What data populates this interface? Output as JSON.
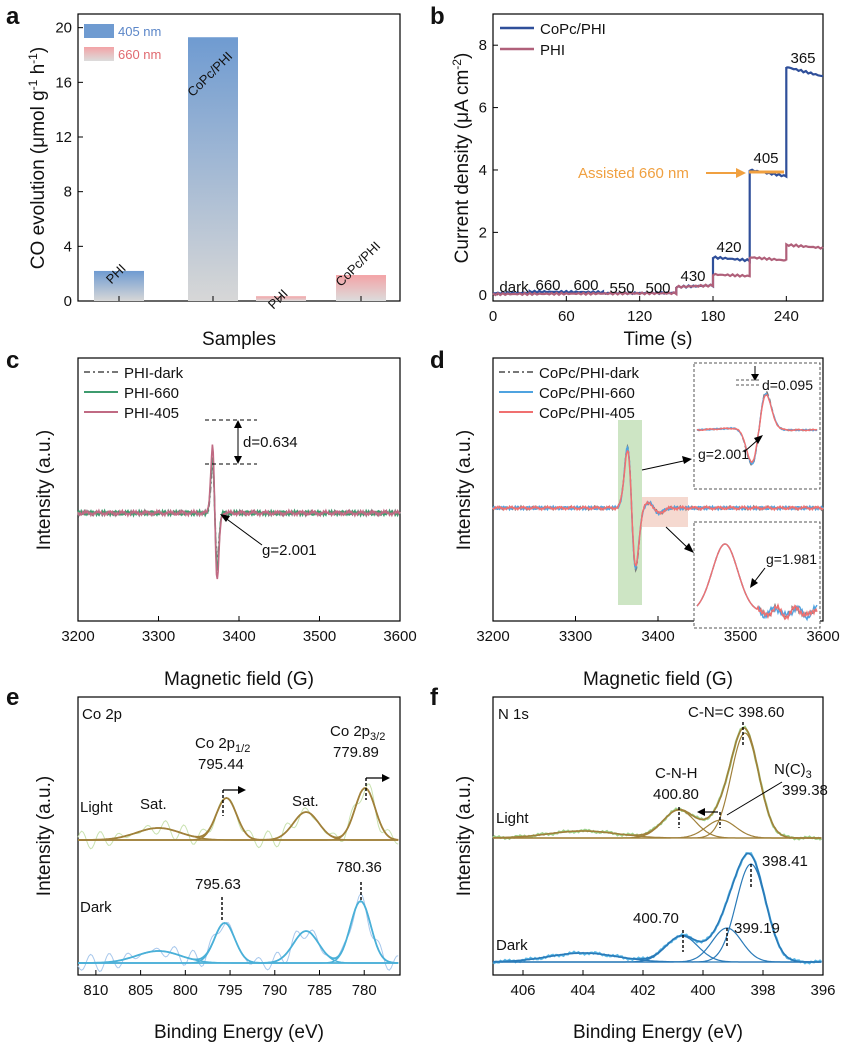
{
  "chart_data": [
    {
      "panel": "a",
      "type": "bar",
      "xlabel": "Samples",
      "ylabel": "CO evolution (μmol g⁻¹ h⁻¹)",
      "ylim": [
        0,
        21
      ],
      "yticks": [
        "0",
        "4",
        "8",
        "12",
        "16",
        "20"
      ],
      "legend_position": "top-left",
      "legend": [
        {
          "label": "405 nm",
          "color": "#6f9bd1"
        },
        {
          "label": "660 nm",
          "color": "#f3a3a6"
        }
      ],
      "bars": [
        {
          "label": "PHI",
          "value": 2.2,
          "light": "405 nm"
        },
        {
          "label": "CoPc/PHI",
          "value": 19.3,
          "light": "405 nm"
        },
        {
          "label": "PHI",
          "value": 0.35,
          "light": "660 nm"
        },
        {
          "label": "CoPc/PHI",
          "value": 1.9,
          "light": "660 nm"
        }
      ]
    },
    {
      "panel": "b",
      "type": "line",
      "xlabel": "Time (s)",
      "ylabel": "Current density (μA cm⁻²)",
      "xlim": [
        0,
        270
      ],
      "ylim": [
        -0.2,
        9
      ],
      "xticks": [
        "0",
        "60",
        "120",
        "180",
        "240"
      ],
      "yticks": [
        "0",
        "2",
        "4",
        "6",
        "8"
      ],
      "legend_position": "top-left",
      "series": [
        {
          "name": "CoPc/PHI",
          "color": "#2f4f9a",
          "x": [
            0,
            30,
            30,
            90,
            90,
            150,
            150,
            180,
            180,
            210,
            210,
            240,
            240,
            270
          ],
          "y": [
            0.05,
            0.06,
            0.1,
            0.08,
            0.05,
            0.06,
            0.25,
            0.3,
            1.2,
            1.1,
            4.0,
            3.8,
            7.3,
            7.0
          ]
        },
        {
          "name": "PHI",
          "color": "#b0607a",
          "x": [
            0,
            150,
            150,
            180,
            180,
            210,
            210,
            240,
            240,
            270
          ],
          "y": [
            0.02,
            0.05,
            0.25,
            0.3,
            0.65,
            0.6,
            1.2,
            1.1,
            1.6,
            1.5
          ]
        }
      ],
      "annotations": [
        "dark",
        "660",
        "600",
        "550",
        "500",
        "430",
        "420",
        "405",
        "365",
        "Assisted 660 nm"
      ]
    },
    {
      "panel": "c",
      "type": "line",
      "xlabel": "Magnetic field (G)",
      "ylabel": "Intensity (a.u.)",
      "xlim": [
        3200,
        3600
      ],
      "xticks": [
        "3200",
        "3300",
        "3400",
        "3500",
        "3600"
      ],
      "legend_position": "top-left",
      "series": [
        {
          "name": "PHI-dark",
          "color": "#777777",
          "style": "dash-dot"
        },
        {
          "name": "PHI-660",
          "color": "#3e9b6e"
        },
        {
          "name": "PHI-405",
          "color": "#c06a83"
        }
      ],
      "annotations": [
        "d=0.634",
        "g=2.001"
      ]
    },
    {
      "panel": "d",
      "type": "line",
      "xlabel": "Magnetic field (G)",
      "ylabel": "Intensity (a.u.)",
      "xlim": [
        3200,
        3600
      ],
      "xticks": [
        "3200",
        "3300",
        "3400",
        "3500",
        "3600"
      ],
      "legend_position": "top-left",
      "series": [
        {
          "name": "CoPc/PHI-dark",
          "color": "#777777",
          "style": "dash-dot"
        },
        {
          "name": "CoPc/PHI-660",
          "color": "#4fa3e0"
        },
        {
          "name": "CoPc/PHI-405",
          "color": "#f07070"
        }
      ],
      "annotations": [
        "d=0.095",
        "g=2.001",
        "g=1.981"
      ]
    },
    {
      "panel": "e",
      "type": "line",
      "title": "Co 2p",
      "xlabel": "Binding Energy (eV)",
      "ylabel": "Intensity (a.u.)",
      "xlim": [
        812,
        776
      ],
      "xticks": [
        "810",
        "805",
        "800",
        "795",
        "790",
        "785",
        "780"
      ],
      "traces": [
        "Light",
        "Dark"
      ],
      "peaks": {
        "Light": [
          "795.44",
          "779.89",
          "Sat.",
          "Sat."
        ],
        "Dark": [
          "795.63",
          "780.36"
        ]
      },
      "labels": [
        "Co 2p1/2",
        "Co 2p3/2"
      ]
    },
    {
      "panel": "f",
      "type": "line",
      "title": "N 1s",
      "xlabel": "Binding Energy (eV)",
      "ylabel": "Intensity (a.u.)",
      "xlim": [
        407,
        396
      ],
      "xticks": [
        "406",
        "404",
        "402",
        "400",
        "398",
        "396"
      ],
      "traces": [
        "Light",
        "Dark"
      ],
      "peaks": {
        "Light": [
          "398.60",
          "400.80",
          "399.38"
        ],
        "Dark": [
          "398.41",
          "400.70",
          "399.19"
        ]
      },
      "labels": [
        "C-N=C",
        "C-N-H",
        "N(C)3"
      ]
    }
  ],
  "panel_letters": [
    "a",
    "b",
    "c",
    "d",
    "e",
    "f"
  ],
  "legend_texts": {
    "a_405": "405 nm",
    "a_660": "660 nm",
    "b_copc": "CoPc/PHI",
    "b_phi": "PHI",
    "c_dark": "PHI-dark",
    "c_660": "PHI-660",
    "c_405": "PHI-405",
    "d_dark": "CoPc/PHI-dark",
    "d_660": "CoPc/PHI-660",
    "d_405": "CoPc/PHI-405"
  },
  "text": {
    "a_xlabel": "Samples",
    "a_ylabel_main": "CO evolution (μmol g",
    "b_xlabel": "Time (s)",
    "b_ylabel_main": "Current density (μA cm",
    "c_xlabel": "Magnetic field (G)",
    "c_ylabel": "Intensity (a.u.)",
    "d_xlabel": "Magnetic field (G)",
    "d_ylabel": "Intensity (a.u.)",
    "e_xlabel": "Binding Energy (eV)",
    "e_ylabel": "Intensity (a.u.)",
    "f_xlabel": "Binding Energy (eV)",
    "f_ylabel": "Intensity (a.u.)",
    "e_title": "Co 2p",
    "f_title": "N 1s",
    "light": "Light",
    "dark": "Dark",
    "c_d": "d=0.634",
    "c_g": "g=2.001",
    "d_d": "d=0.095",
    "d_g1": "g=2.001",
    "d_g2": "g=1.981",
    "b_assisted": "Assisted 660 nm",
    "e_sat": "Sat.",
    "e_co2p": "Co 2p",
    "e_half": "1/2",
    "e_threehalf": "3/2",
    "e_795_44": "795.44",
    "e_779_89": "779.89",
    "e_795_63": "795.63",
    "e_780_36": "780.36",
    "f_cnc": "C-N=C 398.60",
    "f_cnh": "C-N-H",
    "f_400_80": "400.80",
    "f_nc": "N(C)",
    "f_nc_sub": "3",
    "f_399_38": "399.38",
    "f_398_41": "398.41",
    "f_400_70": "400.70",
    "f_399_19": "399.19"
  }
}
